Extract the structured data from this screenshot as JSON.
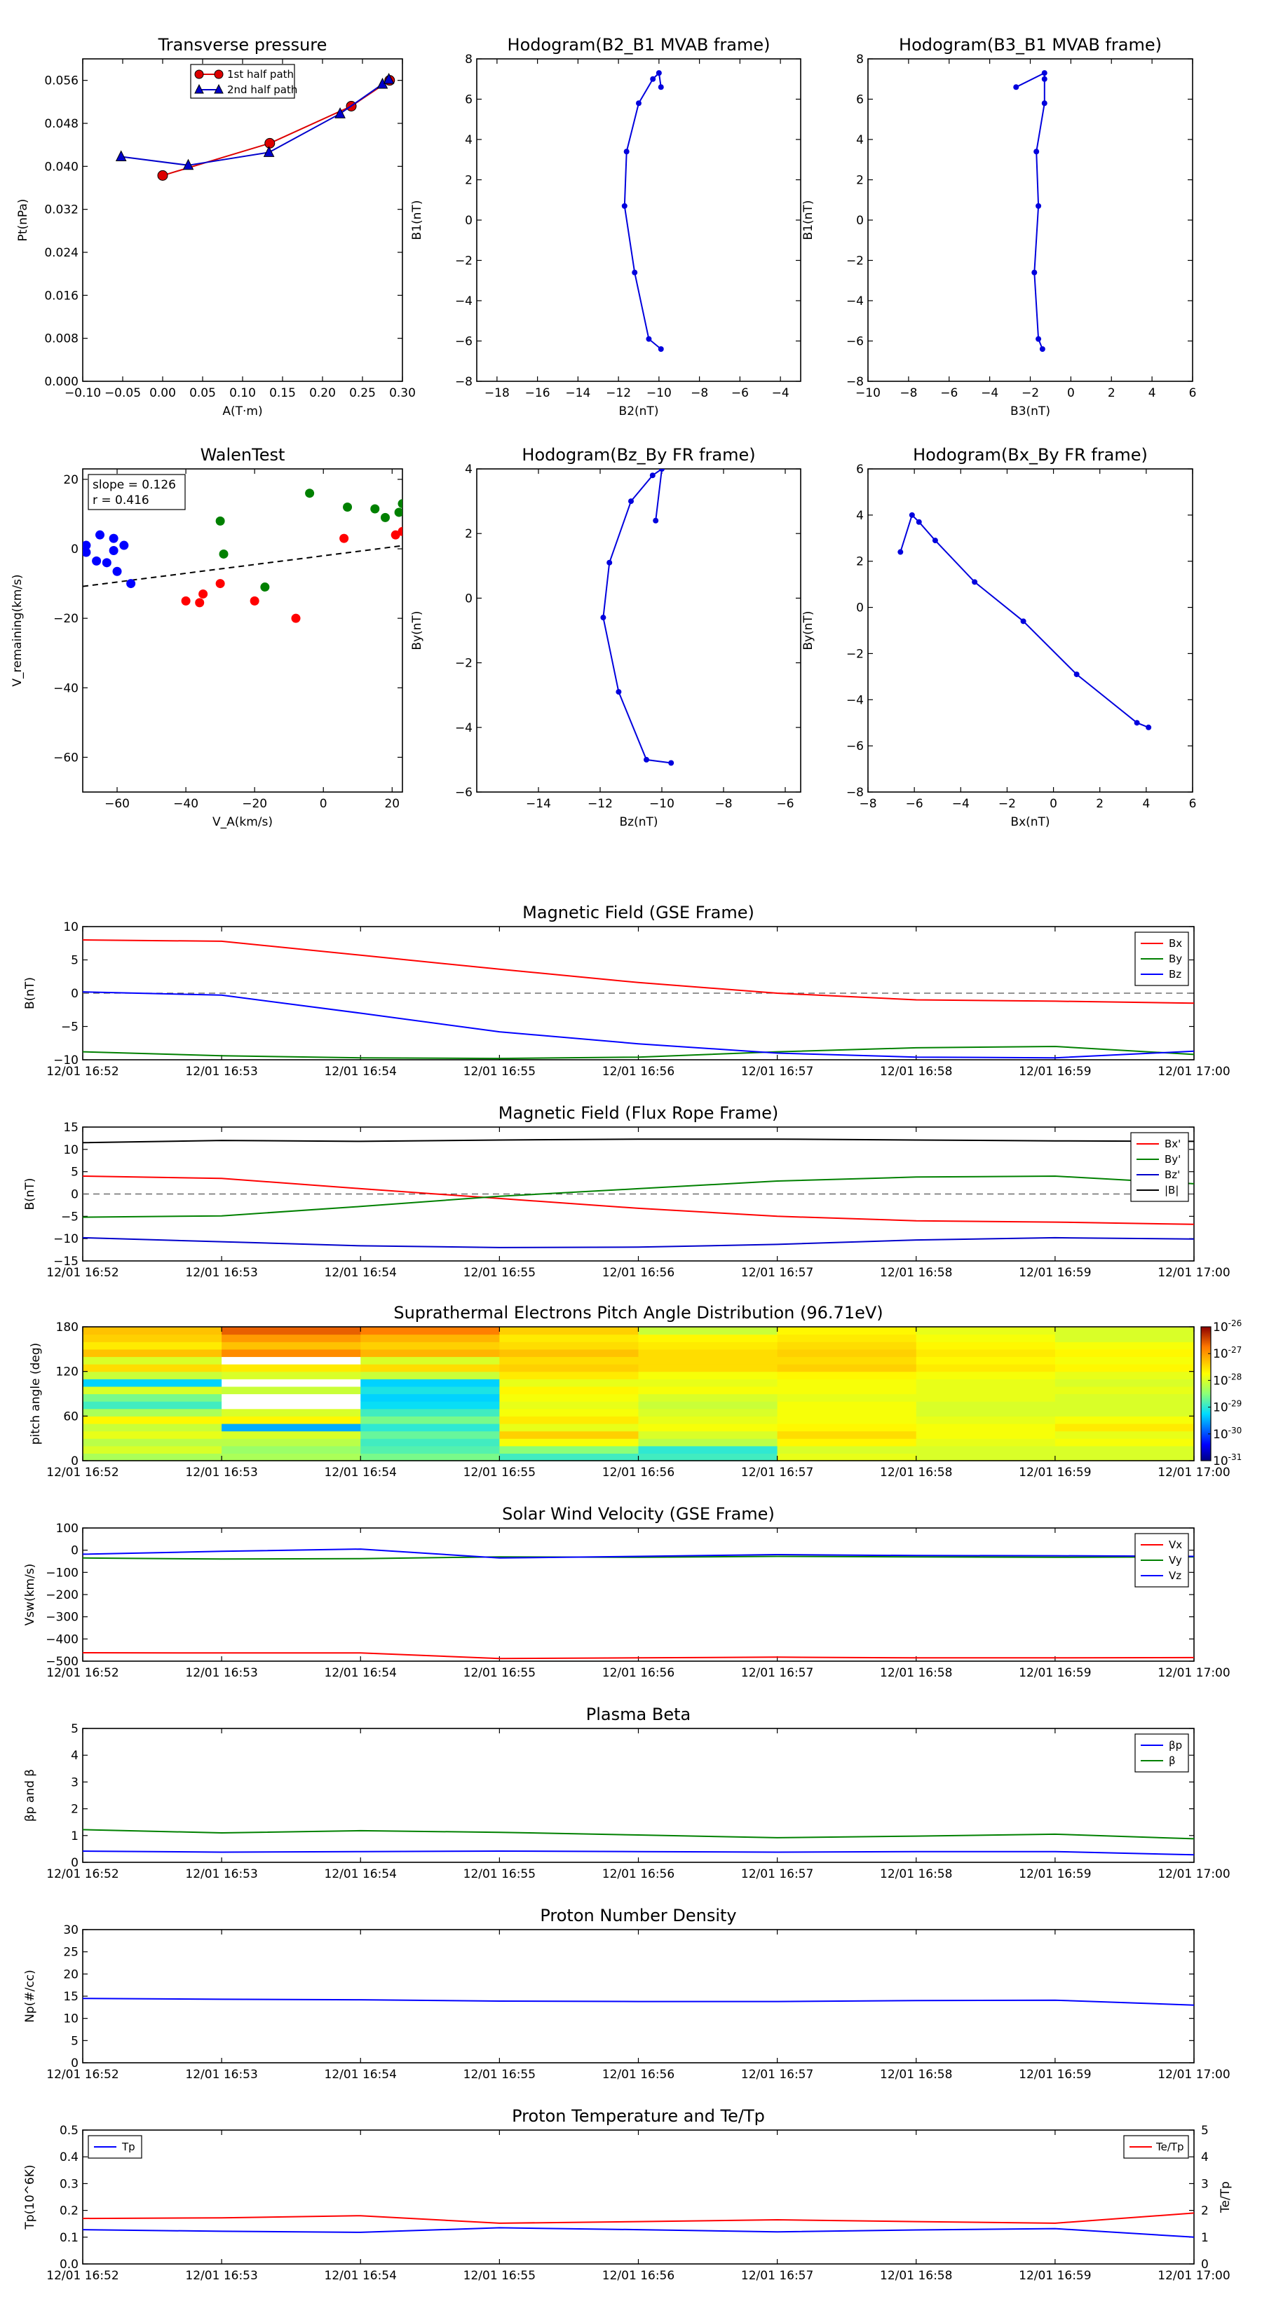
{
  "time_ticks": [
    "12/01 16:52",
    "12/01 16:53",
    "12/01 16:54",
    "12/01 16:55",
    "12/01 16:56",
    "12/01 16:57",
    "12/01 16:58",
    "12/01 16:59",
    "12/01 17:00"
  ],
  "chart_data": [
    {
      "id": "tp",
      "type": "line",
      "title": "Transverse pressure",
      "xlabel": "A(T·m)",
      "ylabel": "Pt(nPa)",
      "xlim": [
        -0.1,
        0.3
      ],
      "ylim": [
        0.0,
        0.06
      ],
      "xticks": [
        "−0.10",
        "−0.05",
        "0.00",
        "0.05",
        "0.10",
        "0.15",
        "0.20",
        "0.25",
        "0.30"
      ],
      "yticks": [
        "0.000",
        "0.008",
        "0.016",
        "0.024",
        "0.032",
        "0.040",
        "0.048",
        "0.056"
      ],
      "legend_position": "top-center",
      "series": [
        {
          "name": "1st half path",
          "color": "#dd0000",
          "marker": "circle",
          "x": [
            0.0,
            0.134,
            0.236,
            0.284
          ],
          "y": [
            0.0383,
            0.0443,
            0.0512,
            0.056
          ]
        },
        {
          "name": "2nd half path",
          "color": "#0000cc",
          "marker": "triangle",
          "x": [
            -0.052,
            0.032,
            0.133,
            0.222,
            0.275,
            0.283
          ],
          "y": [
            0.0418,
            0.0402,
            0.0426,
            0.0498,
            0.0553,
            0.0562
          ]
        }
      ]
    },
    {
      "id": "h1",
      "type": "line",
      "title": "Hodogram(B2_B1 MVAB frame)",
      "xlabel": "B2(nT)",
      "ylabel": "B1(nT)",
      "xlim": [
        -19,
        -3
      ],
      "ylim": [
        -8,
        8
      ],
      "xticks": [
        "−18",
        "−16",
        "−14",
        "−12",
        "−10",
        "−8",
        "−6",
        "−4"
      ],
      "yticks": [
        "−8",
        "−6",
        "−4",
        "−2",
        "0",
        "2",
        "4",
        "6",
        "8"
      ],
      "series": [
        {
          "color": "#0000dd",
          "x": [
            -9.9,
            -10.5,
            -11.2,
            -11.7,
            -11.6,
            -11.0,
            -10.3,
            -10.0,
            -9.9
          ],
          "y": [
            -6.4,
            -5.9,
            -2.6,
            0.7,
            3.4,
            5.8,
            7.0,
            7.3,
            6.6
          ]
        }
      ]
    },
    {
      "id": "h2",
      "type": "line",
      "title": "Hodogram(B3_B1 MVAB frame)",
      "xlabel": "B3(nT)",
      "ylabel": "B1(nT)",
      "xlim": [
        -10,
        6
      ],
      "ylim": [
        -8,
        8
      ],
      "xticks": [
        "−10",
        "−8",
        "−6",
        "−4",
        "−2",
        "0",
        "2",
        "4",
        "6"
      ],
      "yticks": [
        "−8",
        "−6",
        "−4",
        "−2",
        "0",
        "2",
        "4",
        "6",
        "8"
      ],
      "series": [
        {
          "color": "#0000dd",
          "x": [
            -1.4,
            -1.6,
            -1.8,
            -1.6,
            -1.7,
            -1.3,
            -1.3,
            -1.3,
            -2.7
          ],
          "y": [
            -6.4,
            -5.9,
            -2.6,
            0.7,
            3.4,
            5.8,
            7.0,
            7.3,
            6.6
          ]
        }
      ]
    },
    {
      "id": "walen",
      "type": "scatter",
      "title": "WalenTest",
      "xlabel": "V_A(km/s)",
      "ylabel": "V_remaining(km/s)",
      "xlim": [
        -70,
        23
      ],
      "ylim": [
        -70,
        23
      ],
      "xticks": [
        "−60",
        "−40",
        "−20",
        "0",
        "20"
      ],
      "yticks": [
        "−60",
        "−40",
        "−20",
        "0",
        "20"
      ],
      "annotation": [
        "slope = 0.126",
        "r = 0.416"
      ],
      "fit": {
        "slope": 0.126,
        "intercept": -2.0
      },
      "series": [
        {
          "color": "#0000ff",
          "x": [
            -69,
            -69,
            -66,
            -65,
            -61,
            -60,
            -58,
            -56,
            -61,
            -63
          ],
          "y": [
            -1,
            1,
            -3.5,
            4,
            3,
            -6.5,
            1,
            -10,
            -0.5,
            -4
          ]
        },
        {
          "color": "#ff0000",
          "x": [
            -40,
            -36,
            -35,
            -30,
            -20,
            -8,
            6,
            21,
            23
          ],
          "y": [
            -15,
            -15.5,
            -13,
            -10,
            -15,
            -20,
            3,
            4,
            5
          ]
        },
        {
          "color": "#008000",
          "x": [
            -30,
            -29,
            -17,
            -4,
            7,
            15,
            18,
            22,
            23
          ],
          "y": [
            8,
            -1.5,
            -11,
            16,
            12,
            11.5,
            9,
            10.5,
            13
          ]
        }
      ]
    },
    {
      "id": "h3",
      "type": "line",
      "title": "Hodogram(Bz_By FR frame)",
      "xlabel": "Bz(nT)",
      "ylabel": "By(nT)",
      "xlim": [
        -16,
        -5.5
      ],
      "ylim": [
        -6,
        4
      ],
      "xticks": [
        "−14",
        "−12",
        "−10",
        "−8",
        "−6"
      ],
      "yticks": [
        "−6",
        "−4",
        "−2",
        "0",
        "2",
        "4"
      ],
      "series": [
        {
          "color": "#0000dd",
          "x": [
            -9.7,
            -10.5,
            -11.4,
            -11.9,
            -11.7,
            -11.0,
            -10.3,
            -10.0,
            -10.2
          ],
          "y": [
            -5.1,
            -5.0,
            -2.9,
            -0.6,
            1.1,
            3.0,
            3.8,
            4.0,
            2.4
          ]
        }
      ]
    },
    {
      "id": "h4",
      "type": "line",
      "title": "Hodogram(Bx_By FR frame)",
      "xlabel": "Bx(nT)",
      "ylabel": "By(nT)",
      "xlim": [
        -8,
        6
      ],
      "ylim": [
        -8,
        6
      ],
      "xticks": [
        "−8",
        "−6",
        "−4",
        "−2",
        "0",
        "2",
        "4",
        "6"
      ],
      "yticks": [
        "−8",
        "−6",
        "−4",
        "−2",
        "0",
        "2",
        "4",
        "6"
      ],
      "series": [
        {
          "color": "#0000dd",
          "x": [
            -6.6,
            -6.1,
            -5.8,
            -5.1,
            -3.4,
            -1.3,
            1.0,
            3.6,
            4.1
          ],
          "y": [
            2.4,
            4.0,
            3.7,
            2.9,
            1.1,
            -0.6,
            -2.9,
            -5.0,
            -5.2
          ]
        }
      ]
    },
    {
      "id": "bgse",
      "type": "line",
      "title": "Magnetic Field (GSE Frame)",
      "ylabel": "B(nT)",
      "ylim": [
        -10,
        10
      ],
      "yticks": [
        "−10",
        "−5",
        "0",
        "5",
        "10"
      ],
      "zero_line": true,
      "legend_position": "top-right",
      "series": [
        {
          "name": "Bx",
          "color": "#ff0000",
          "values": [
            8.0,
            7.8,
            5.7,
            3.6,
            1.6,
            0.0,
            -1.0,
            -1.2,
            -1.5
          ]
        },
        {
          "name": "By",
          "color": "#008000",
          "values": [
            -8.8,
            -9.4,
            -9.7,
            -9.8,
            -9.6,
            -8.8,
            -8.2,
            -8.0,
            -9.2
          ]
        },
        {
          "name": "Bz",
          "color": "#0000ff",
          "values": [
            0.2,
            -0.3,
            -3.0,
            -5.8,
            -7.6,
            -9.0,
            -9.6,
            -9.7,
            -8.7
          ]
        }
      ]
    },
    {
      "id": "bfr",
      "type": "line",
      "title": "Magnetic Field (Flux Rope Frame)",
      "ylabel": "B(nT)",
      "ylim": [
        -15,
        15
      ],
      "yticks": [
        "−15",
        "−10",
        "−5",
        "0",
        "5",
        "10",
        "15"
      ],
      "zero_line": true,
      "legend_position": "top-right",
      "series": [
        {
          "name": "Bx'",
          "color": "#ff0000",
          "values": [
            4.0,
            3.5,
            1.2,
            -1.0,
            -3.2,
            -5.0,
            -6.0,
            -6.3,
            -6.8
          ]
        },
        {
          "name": "By'",
          "color": "#008000",
          "values": [
            -5.2,
            -4.9,
            -2.8,
            -0.5,
            1.2,
            2.9,
            3.8,
            4.0,
            2.3
          ]
        },
        {
          "name": "Bz'",
          "color": "#0000cc",
          "values": [
            -9.8,
            -10.7,
            -11.6,
            -12.0,
            -11.9,
            -11.3,
            -10.3,
            -9.8,
            -10.1
          ]
        },
        {
          "name": "|B|",
          "color": "#000000",
          "values": [
            11.5,
            12.0,
            11.8,
            12.1,
            12.3,
            12.3,
            12.1,
            11.9,
            11.8
          ]
        }
      ]
    },
    {
      "id": "pad",
      "type": "heatmap",
      "title": "Suprathermal Electrons Pitch Angle Distribution (96.71eV)",
      "ylabel": "pitch angle (deg)",
      "ylim": [
        0,
        180
      ],
      "yticks": [
        "0",
        "60",
        "120",
        "180"
      ],
      "colorbar_ticks": [
        "10-26",
        "10-27",
        "10-28",
        "10-29",
        "10-30",
        "10-31"
      ],
      "log10_values": [
        [
          -28.3,
          -28.3,
          -28.6,
          -28.9,
          -28.9,
          -27.9,
          -28.0,
          -28.0
        ],
        [
          -28.0,
          -28.4,
          -28.8,
          -28.5,
          -29.0,
          -28.0,
          -28.0,
          -28.0
        ],
        [
          -28.2,
          -28.2,
          -28.9,
          -27.8,
          -28.2,
          -27.7,
          -27.9,
          -27.8
        ],
        [
          -27.9,
          -28.0,
          -28.7,
          -27.4,
          -28.0,
          -27.5,
          -27.8,
          -27.9
        ],
        [
          -28.1,
          -29.5,
          -29.0,
          -27.9,
          -27.8,
          -27.7,
          -27.8,
          -27.6
        ],
        [
          -27.7,
          -27.7,
          -28.6,
          -27.6,
          -27.9,
          -27.8,
          -27.9,
          -27.8
        ],
        [
          -28.3,
          -28.0,
          -28.9,
          -27.8,
          -28.0,
          -27.8,
          -28.0,
          -28.0
        ],
        [
          -28.9,
          -32.0,
          -29.2,
          -27.9,
          -28.1,
          -27.8,
          -28.0,
          -28.0
        ],
        [
          -28.6,
          -32.0,
          -29.3,
          -27.8,
          -28.0,
          -27.9,
          -27.9,
          -28.0
        ],
        [
          -28.0,
          -28.1,
          -29.1,
          -27.7,
          -27.8,
          -27.8,
          -27.9,
          -27.9
        ],
        [
          -29.3,
          -32.0,
          -29.3,
          -27.9,
          -27.9,
          -27.8,
          -27.9,
          -28.0
        ],
        [
          -28.1,
          -28.0,
          -28.1,
          -27.6,
          -27.8,
          -27.7,
          -27.8,
          -27.9
        ],
        [
          -27.5,
          -27.6,
          -27.5,
          -27.4,
          -27.5,
          -27.4,
          -27.6,
          -27.7
        ],
        [
          -28.0,
          -32.0,
          -28.0,
          -27.5,
          -27.5,
          -27.5,
          -27.7,
          -27.8
        ],
        [
          -27.3,
          -26.9,
          -27.2,
          -27.3,
          -27.5,
          -27.4,
          -27.6,
          -27.7
        ],
        [
          -27.6,
          -27.3,
          -27.4,
          -27.5,
          -27.6,
          -27.5,
          -27.7,
          -27.8
        ],
        [
          -27.4,
          -27.0,
          -27.2,
          -27.6,
          -27.7,
          -27.6,
          -27.8,
          -28.0
        ],
        [
          -27.3,
          -26.6,
          -26.8,
          -27.4,
          -28.1,
          -27.7,
          -27.9,
          -28.0
        ]
      ]
    },
    {
      "id": "vsw",
      "type": "line",
      "title": "Solar Wind Velocity (GSE Frame)",
      "ylabel": "Vsw(km/s)",
      "ylim": [
        -500,
        100
      ],
      "yticks": [
        "−500",
        "−400",
        "−300",
        "−200",
        "−100",
        "0",
        "100"
      ],
      "legend_position": "top-right",
      "series": [
        {
          "name": "Vx",
          "color": "#ff0000",
          "values": [
            -462,
            -463,
            -463,
            -488,
            -485,
            -482,
            -485,
            -485,
            -484
          ]
        },
        {
          "name": "Vy",
          "color": "#008000",
          "values": [
            -35,
            -40,
            -38,
            -30,
            -32,
            -28,
            -30,
            -32,
            -30
          ]
        },
        {
          "name": "Vz",
          "color": "#0000ff",
          "values": [
            -18,
            -5,
            5,
            -35,
            -28,
            -20,
            -24,
            -25,
            -28
          ]
        }
      ]
    },
    {
      "id": "beta",
      "type": "line",
      "title": "Plasma Beta",
      "ylabel": "βp and β",
      "ylim": [
        0,
        5
      ],
      "yticks": [
        "0",
        "1",
        "2",
        "3",
        "4",
        "5"
      ],
      "legend_position": "top-right",
      "series": [
        {
          "name": "βp",
          "color": "#0000ff",
          "values": [
            0.42,
            0.38,
            0.4,
            0.42,
            0.4,
            0.38,
            0.4,
            0.4,
            0.28
          ]
        },
        {
          "name": "β",
          "color": "#008000",
          "values": [
            1.22,
            1.1,
            1.18,
            1.12,
            1.02,
            0.92,
            0.98,
            1.05,
            0.88
          ]
        }
      ]
    },
    {
      "id": "np",
      "type": "line",
      "title": "Proton Number Density",
      "ylabel": "Np(#/cc)",
      "ylim": [
        0,
        30
      ],
      "yticks": [
        "0",
        "5",
        "10",
        "15",
        "20",
        "25",
        "30"
      ],
      "series": [
        {
          "color": "#0000ff",
          "values": [
            14.5,
            14.3,
            14.2,
            13.9,
            13.8,
            13.8,
            14.0,
            14.1,
            13.0
          ]
        }
      ]
    },
    {
      "id": "temp",
      "type": "line",
      "title": "Proton Temperature and Te/Tp",
      "ylabel": "Tp(10^6K)",
      "ylabel_right": "Te/Tp",
      "ylim": [
        0,
        0.5
      ],
      "ylim_right": [
        0,
        5
      ],
      "yticks": [
        "0.0",
        "0.1",
        "0.2",
        "0.3",
        "0.4",
        "0.5"
      ],
      "yticks_right": [
        "0",
        "1",
        "2",
        "3",
        "4",
        "5"
      ],
      "series": [
        {
          "name": "Tp",
          "color": "#0000ff",
          "axis": "left",
          "values": [
            0.128,
            0.122,
            0.118,
            0.135,
            0.128,
            0.12,
            0.127,
            0.132,
            0.1
          ]
        },
        {
          "name": "Te/Tp",
          "color": "#ff0000",
          "axis": "right",
          "values": [
            1.7,
            1.72,
            1.8,
            1.52,
            1.58,
            1.65,
            1.58,
            1.52,
            1.9
          ]
        }
      ]
    }
  ]
}
